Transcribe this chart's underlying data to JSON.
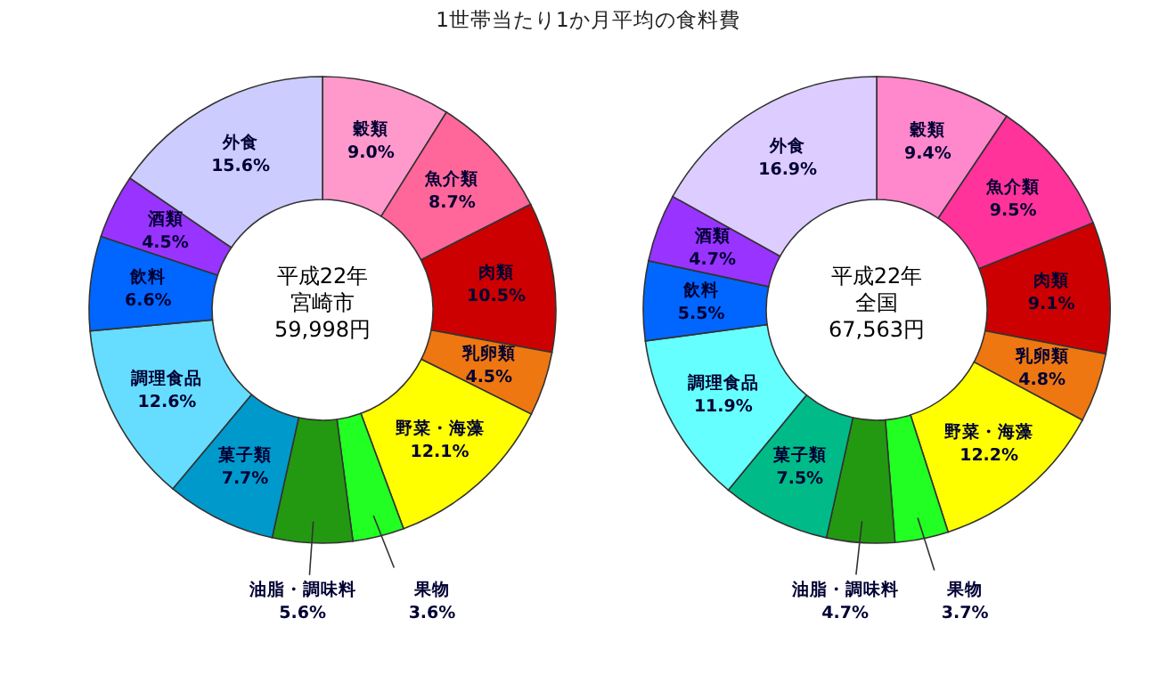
{
  "chart_data": [
    {
      "type": "donut",
      "title": "1世帯当たり1か月平均の食料費",
      "categories": [
        "穀類",
        "魚介類",
        "肉類",
        "乳卵類",
        "野菜・海藻",
        "果物",
        "油脂・調味料",
        "菓子類",
        "調理食品",
        "飲料",
        "酒類",
        "外食"
      ],
      "values": [
        9.0,
        8.7,
        10.5,
        4.5,
        12.1,
        3.6,
        5.6,
        7.7,
        12.6,
        6.6,
        4.5,
        15.6
      ],
      "value_labels": [
        "9.0%",
        "8.7%",
        "10.5%",
        "4.5%",
        "12.1%",
        "3.6%",
        "5.6%",
        "7.7%",
        "12.6%",
        "6.6%",
        "4.5%",
        "15.6%"
      ],
      "colors": [
        "#ff99cc",
        "#ff6699",
        "#cc0000",
        "#ee7711",
        "#ffff00",
        "#22ff22",
        "#229911",
        "#0099cc",
        "#66ddff",
        "#0066ff",
        "#9933ff",
        "#ccccff"
      ],
      "annotations": [
        "平成22年",
        "宮崎市",
        "59,998円"
      ]
    },
    {
      "type": "donut",
      "categories": [
        "穀類",
        "魚介類",
        "肉類",
        "乳卵類",
        "野菜・海藻",
        "果物",
        "油脂・調味料",
        "菓子類",
        "調理食品",
        "飲料",
        "酒類",
        "外食"
      ],
      "values": [
        9.4,
        9.5,
        9.1,
        4.8,
        12.2,
        3.7,
        4.7,
        7.5,
        11.9,
        5.5,
        4.7,
        16.9
      ],
      "value_labels": [
        "9.4%",
        "9.5%",
        "9.1%",
        "4.8%",
        "12.2%",
        "3.7%",
        "4.7%",
        "7.5%",
        "11.9%",
        "5.5%",
        "4.7%",
        "16.9%"
      ],
      "colors": [
        "#ff88cc",
        "#ff3399",
        "#cc0000",
        "#ee7711",
        "#ffff00",
        "#22ff22",
        "#229911",
        "#00bb88",
        "#66ffff",
        "#0066ff",
        "#9933ff",
        "#ddccff"
      ],
      "annotations": [
        "平成22年",
        "全国",
        "67,563円"
      ]
    }
  ]
}
